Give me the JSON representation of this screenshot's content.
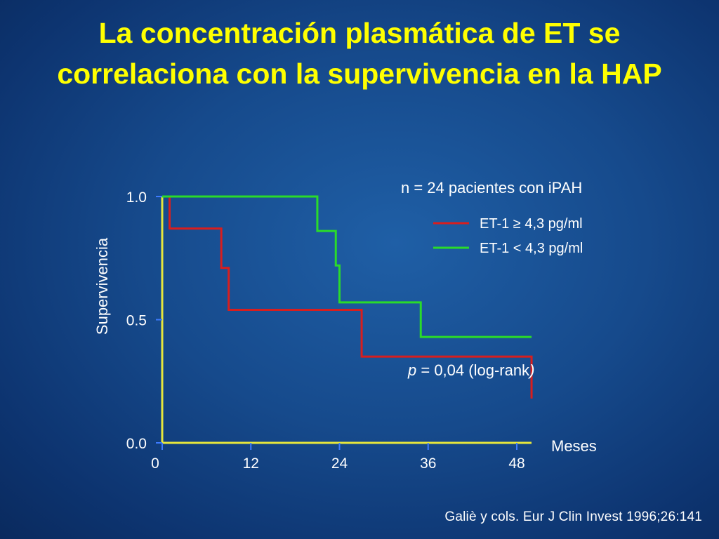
{
  "title": "La concentración plasmática de ET se correlaciona con la supervivencia en la HAP",
  "citation": "Galiè y cols. Eur J Clin Invest 1996;26:141",
  "colors": {
    "background": "#164a8c",
    "title": "#ffff00",
    "axis": "#e6e63c",
    "red": "#d81e1e",
    "green": "#2adb2a"
  },
  "chart_data": {
    "type": "line",
    "step": "post",
    "xlabel": "Meses",
    "ylabel": "Supervivencia",
    "xlim": [
      0,
      48
    ],
    "ylim": [
      0,
      1
    ],
    "xticks": [
      "0",
      "12",
      "24",
      "36",
      "48"
    ],
    "yticks": [
      "0.0",
      "0.5",
      "1.0"
    ],
    "annotation_n": "n = 24 pacientes con iPAH",
    "annotation_p_italic": "p",
    "annotation_p": " = 0,04 (log-rank",
    "annotation_p_close": ")",
    "grid": false,
    "legend_position": "top-right",
    "series": [
      {
        "name": "ET-1 ≥ 4,3 pg/ml",
        "color": "#d81e1e",
        "x": [
          0,
          1,
          8,
          9,
          27,
          50
        ],
        "y": [
          1.0,
          0.87,
          0.71,
          0.54,
          0.35,
          0.18
        ]
      },
      {
        "name": "ET-1 < 4,3 pg/ml",
        "color": "#2adb2a",
        "x": [
          0,
          21,
          23.5,
          24,
          35,
          50
        ],
        "y": [
          1.0,
          0.86,
          0.72,
          0.57,
          0.43,
          0.43
        ]
      }
    ]
  }
}
